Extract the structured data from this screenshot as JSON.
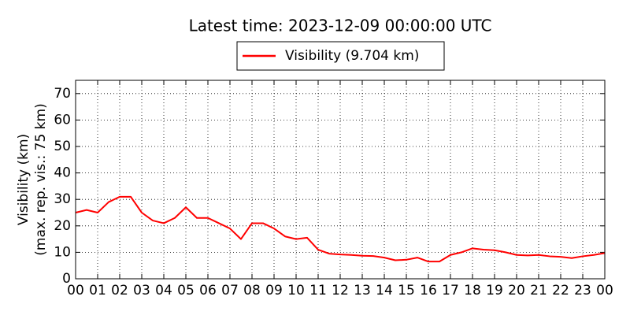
{
  "chart_data": {
    "type": "line",
    "title": "Latest time: 2023-12-09 00:00:00 UTC",
    "ylabel": [
      "Visibility (km)",
      "(max. rep. vis.: 75 km)"
    ],
    "x": [
      0,
      0.5,
      1,
      1.5,
      2,
      2.5,
      3,
      3.5,
      4,
      4.5,
      5,
      5.5,
      6,
      6.5,
      7,
      7.5,
      8,
      8.5,
      9,
      9.5,
      10,
      10.5,
      11,
      11.5,
      12,
      12.5,
      13,
      13.5,
      14,
      14.5,
      15,
      15.5,
      16,
      16.5,
      17,
      17.5,
      18,
      18.5,
      19,
      19.5,
      20,
      20.5,
      21,
      21.5,
      22,
      22.5,
      23,
      23.5,
      24
    ],
    "series": [
      {
        "name": "Visibility (9.704 km)",
        "color": "#ff0000",
        "values": [
          25,
          26,
          25,
          29,
          31,
          31,
          25,
          22,
          21,
          23,
          27,
          23,
          23,
          21,
          19,
          15,
          21,
          21,
          19,
          16,
          15,
          15.5,
          11,
          9.5,
          9.2,
          9,
          8.7,
          8.6,
          8,
          7,
          7.2,
          8,
          6.5,
          6.5,
          9,
          10,
          11.5,
          11,
          10.8,
          10,
          9,
          8.8,
          9,
          8.5,
          8.3,
          7.8,
          8.5,
          9,
          9.7
        ]
      }
    ],
    "xlim": [
      0,
      24
    ],
    "xticks": [
      {
        "value": 0,
        "label": "00"
      },
      {
        "value": 1,
        "label": "01"
      },
      {
        "value": 2,
        "label": "02"
      },
      {
        "value": 3,
        "label": "03"
      },
      {
        "value": 4,
        "label": "04"
      },
      {
        "value": 5,
        "label": "05"
      },
      {
        "value": 6,
        "label": "06"
      },
      {
        "value": 7,
        "label": "07"
      },
      {
        "value": 8,
        "label": "08"
      },
      {
        "value": 9,
        "label": "09"
      },
      {
        "value": 10,
        "label": "10"
      },
      {
        "value": 11,
        "label": "11"
      },
      {
        "value": 12,
        "label": "12"
      },
      {
        "value": 13,
        "label": "13"
      },
      {
        "value": 14,
        "label": "14"
      },
      {
        "value": 15,
        "label": "15"
      },
      {
        "value": 16,
        "label": "16"
      },
      {
        "value": 17,
        "label": "17"
      },
      {
        "value": 18,
        "label": "18"
      },
      {
        "value": 19,
        "label": "19"
      },
      {
        "value": 20,
        "label": "20"
      },
      {
        "value": 21,
        "label": "21"
      },
      {
        "value": 22,
        "label": "22"
      },
      {
        "value": 23,
        "label": "23"
      },
      {
        "value": 24,
        "label": "00"
      }
    ],
    "ylim": [
      0,
      75
    ],
    "yticks": [
      0,
      10,
      20,
      30,
      40,
      50,
      60,
      70
    ],
    "grid": true
  }
}
